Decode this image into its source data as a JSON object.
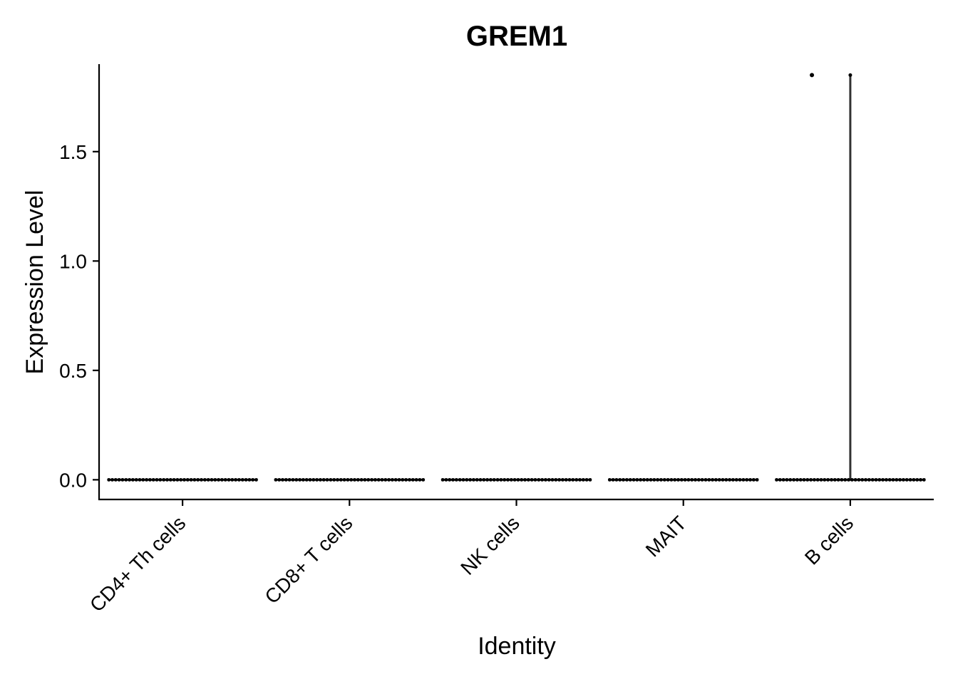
{
  "chart_data": {
    "type": "violin",
    "title": "GREM1",
    "xlabel": "Identity",
    "ylabel": "Expression Level",
    "categories": [
      "CD4+ Th cells",
      "CD8+ T cells",
      "NK cells",
      "MAIT",
      "B cells"
    ],
    "ylim": [
      -0.09,
      1.9
    ],
    "yticks": [
      0.0,
      0.5,
      1.0,
      1.5
    ],
    "ytick_labels": [
      "0.0",
      "0.5",
      "1.0",
      "1.5"
    ],
    "max_values": [
      0,
      0,
      0,
      0,
      1.85
    ],
    "outlier_points": [
      {
        "category": "B cells",
        "jitter": -0.23,
        "value": 1.85
      }
    ],
    "grid": false,
    "legend": "none",
    "color": "#000000"
  }
}
